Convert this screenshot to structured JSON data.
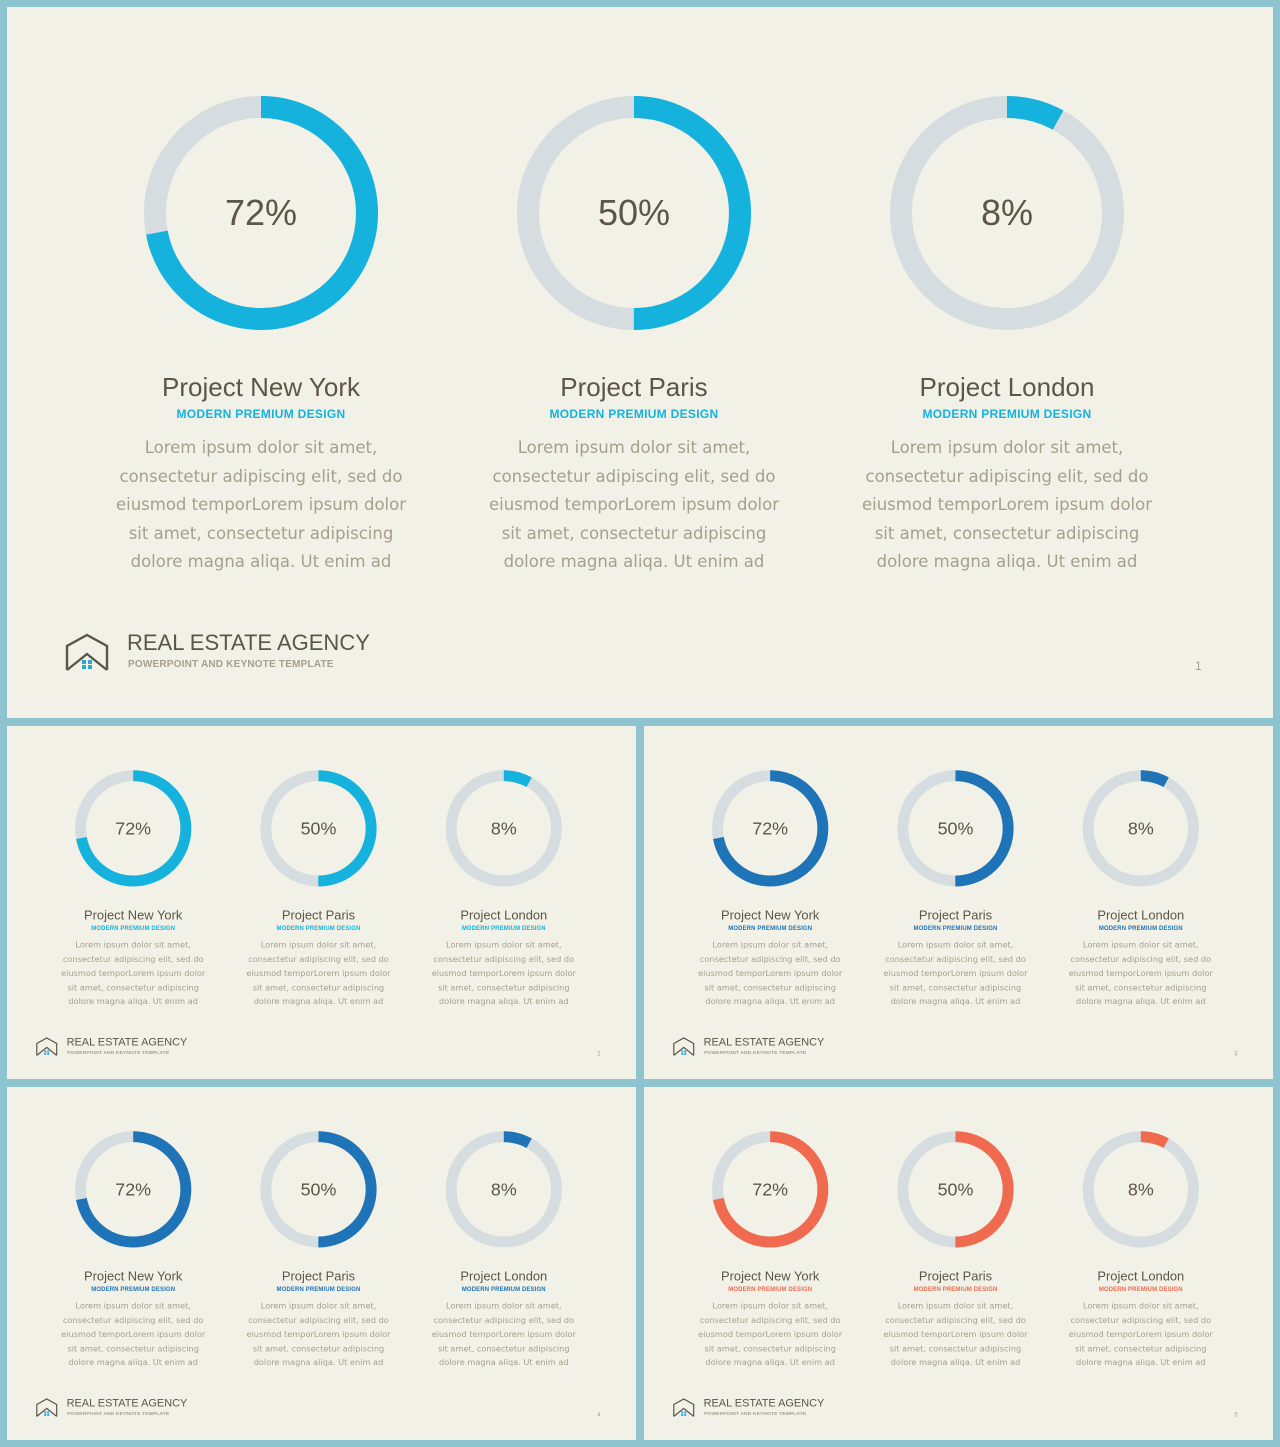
{
  "theme": {
    "track_color": "#d6dde0",
    "text_dark": "#5c5646",
    "text_muted": "#a5a08c",
    "slide_bg": "#f1f1e7",
    "frame_bg": "#8dc4d0",
    "logo_dot_color": "#2ea6d8"
  },
  "slides": [
    {
      "accent": "#15b2de",
      "page_number": "1",
      "brand": {
        "name": "REAL ESTATE AGENCY",
        "tagline": "POWERPOINT AND KEYNOTE TEMPLATE"
      },
      "projects": [
        {
          "percent": 72,
          "percent_label": "72%",
          "title": "Project New York",
          "subtitle": "MODERN PREMIUM DESIGN",
          "description": "Lorem ipsum dolor sit amet, consectetur adipiscing elit, sed do eiusmod temporLorem ipsum dolor sit amet, consectetur adipiscing dolore magna aliqa. Ut enim ad"
        },
        {
          "percent": 50,
          "percent_label": "50%",
          "title": "Project Paris",
          "subtitle": "MODERN PREMIUM DESIGN",
          "description": "Lorem ipsum dolor sit amet, consectetur adipiscing elit, sed do eiusmod temporLorem ipsum dolor sit amet, consectetur adipiscing dolore magna aliqa. Ut enim ad"
        },
        {
          "percent": 8,
          "percent_label": "8%",
          "title": "Project London",
          "subtitle": "MODERN PREMIUM DESIGN",
          "description": "Lorem ipsum dolor sit amet, consectetur adipiscing elit, sed do eiusmod temporLorem ipsum dolor sit amet, consectetur adipiscing dolore magna aliqa. Ut enim ad"
        }
      ]
    },
    {
      "accent": "#15b2de",
      "page_number": "2",
      "brand": {
        "name": "REAL ESTATE AGENCY",
        "tagline": "POWERPOINT AND KEYNOTE TEMPLATE"
      },
      "projects": [
        {
          "percent": 72,
          "percent_label": "72%",
          "title": "Project New York",
          "subtitle": "MODERN PREMIUM DESIGN",
          "description": "Lorem ipsum dolor sit amet, consectetur adipiscing elit, sed do eiusmod temporLorem ipsum dolor sit amet, consectetur adipiscing dolore magna aliqa. Ut enim ad"
        },
        {
          "percent": 50,
          "percent_label": "50%",
          "title": "Project Paris",
          "subtitle": "MODERN PREMIUM DESIGN",
          "description": "Lorem ipsum dolor sit amet, consectetur adipiscing elit, sed do eiusmod temporLorem ipsum dolor sit amet, consectetur adipiscing dolore magna aliqa. Ut enim ad"
        },
        {
          "percent": 8,
          "percent_label": "8%",
          "title": "Project London",
          "subtitle": "MODERN PREMIUM DESIGN",
          "description": "Lorem ipsum dolor sit amet, consectetur adipiscing elit, sed do eiusmod temporLorem ipsum dolor sit amet, consectetur adipiscing dolore magna aliqa. Ut enim ad"
        }
      ]
    },
    {
      "accent": "#1f73b7",
      "page_number": "3",
      "brand": {
        "name": "REAL ESTATE AGENCY",
        "tagline": "POWERPOINT AND KEYNOTE TEMPLATE"
      },
      "projects": [
        {
          "percent": 72,
          "percent_label": "72%",
          "title": "Project New York",
          "subtitle": "MODERN PREMIUM DESIGN",
          "description": "Lorem ipsum dolor sit amet, consectetur adipiscing elit, sed do eiusmod temporLorem ipsum dolor sit amet, consectetur adipiscing dolore magna aliqa. Ut enim ad"
        },
        {
          "percent": 50,
          "percent_label": "50%",
          "title": "Project Paris",
          "subtitle": "MODERN PREMIUM DESIGN",
          "description": "Lorem ipsum dolor sit amet, consectetur adipiscing elit, sed do eiusmod temporLorem ipsum dolor sit amet, consectetur adipiscing dolore magna aliqa. Ut enim ad"
        },
        {
          "percent": 8,
          "percent_label": "8%",
          "title": "Project London",
          "subtitle": "MODERN PREMIUM DESIGN",
          "description": "Lorem ipsum dolor sit amet, consectetur adipiscing elit, sed do eiusmod temporLorem ipsum dolor sit amet, consectetur adipiscing dolore magna aliqa. Ut enim ad"
        }
      ]
    },
    {
      "accent": "#1f73b7",
      "page_number": "4",
      "brand": {
        "name": "REAL ESTATE AGENCY",
        "tagline": "POWERPOINT AND KEYNOTE TEMPLATE"
      },
      "projects": [
        {
          "percent": 72,
          "percent_label": "72%",
          "title": "Project New York",
          "subtitle": "MODERN PREMIUM DESIGN",
          "description": "Lorem ipsum dolor sit amet, consectetur adipiscing elit, sed do eiusmod temporLorem ipsum dolor sit amet, consectetur adipiscing dolore magna aliqa. Ut enim ad"
        },
        {
          "percent": 50,
          "percent_label": "50%",
          "title": "Project Paris",
          "subtitle": "MODERN PREMIUM DESIGN",
          "description": "Lorem ipsum dolor sit amet, consectetur adipiscing elit, sed do eiusmod temporLorem ipsum dolor sit amet, consectetur adipiscing dolore magna aliqa. Ut enim ad"
        },
        {
          "percent": 8,
          "percent_label": "8%",
          "title": "Project London",
          "subtitle": "MODERN PREMIUM DESIGN",
          "description": "Lorem ipsum dolor sit amet, consectetur adipiscing elit, sed do eiusmod temporLorem ipsum dolor sit amet, consectetur adipiscing dolore magna aliqa. Ut enim ad"
        }
      ]
    },
    {
      "accent": "#ef6a4e",
      "page_number": "5",
      "brand": {
        "name": "REAL ESTATE AGENCY",
        "tagline": "POWERPOINT AND KEYNOTE TEMPLATE"
      },
      "projects": [
        {
          "percent": 72,
          "percent_label": "72%",
          "title": "Project New York",
          "subtitle": "MODERN PREMIUM DESIGN",
          "description": "Lorem ipsum dolor sit amet, consectetur adipiscing elit, sed do eiusmod temporLorem ipsum dolor sit amet, consectetur adipiscing dolore magna aliqa. Ut enim ad"
        },
        {
          "percent": 50,
          "percent_label": "50%",
          "title": "Project Paris",
          "subtitle": "MODERN PREMIUM DESIGN",
          "description": "Lorem ipsum dolor sit amet, consectetur adipiscing elit, sed do eiusmod temporLorem ipsum dolor sit amet, consectetur adipiscing dolore magna aliqa. Ut enim ad"
        },
        {
          "percent": 8,
          "percent_label": "8%",
          "title": "Project London",
          "subtitle": "MODERN PREMIUM DESIGN",
          "description": "Lorem ipsum dolor sit amet, consectetur adipiscing elit, sed do eiusmod temporLorem ipsum dolor sit amet, consectetur adipiscing dolore magna aliqa. Ut enim ad"
        }
      ]
    }
  ]
}
